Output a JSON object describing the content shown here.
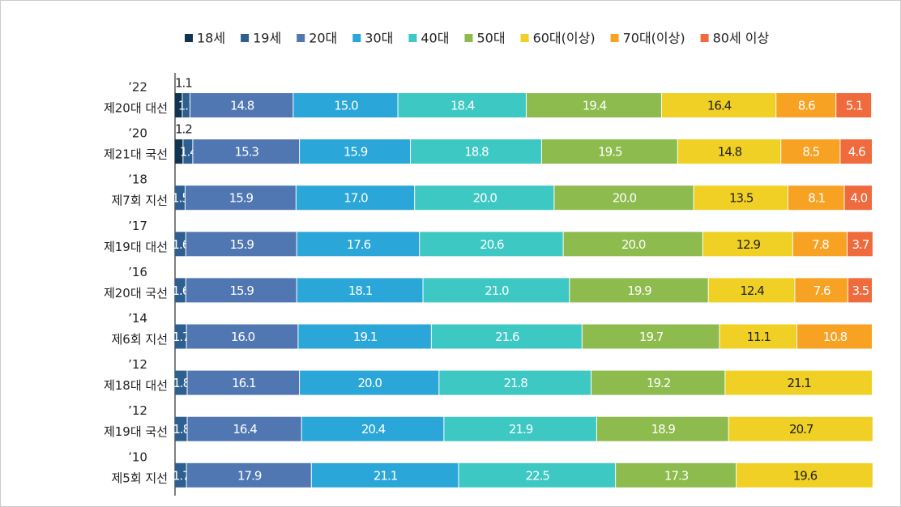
{
  "chart_data": {
    "type": "stacked-bar",
    "categories": [
      [
        "’22",
        "제20대 대선"
      ],
      [
        "’20",
        "제21대 국선"
      ],
      [
        "’18",
        "제7회 지선"
      ],
      [
        "’17",
        "제19대 대선"
      ],
      [
        "’16",
        "제20대 국선"
      ],
      [
        "’14",
        "제6회 지선"
      ],
      [
        "’12",
        "제18대 대선"
      ],
      [
        "’12",
        "제19대 국선"
      ],
      [
        "’10",
        "제5회 지선"
      ]
    ],
    "xlim": [
      0,
      100
    ],
    "series": [
      {
        "name": "18세",
        "color": "#0f3552",
        "values": [
          1.1,
          1.2,
          null,
          null,
          null,
          null,
          null,
          null,
          null
        ],
        "value_labels": [
          "1.1",
          "1.2",
          null,
          null,
          null,
          null,
          null,
          null,
          null
        ]
      },
      {
        "name": "19세",
        "color": "#2d5f90",
        "values": [
          1.1,
          1.4,
          1.5,
          1.6,
          1.6,
          1.7,
          1.8,
          1.8,
          1.7
        ],
        "value_labels": [
          "1.1",
          "1.4",
          "1.5",
          "1.6",
          "1.6",
          "1.7",
          "1.8",
          "1.8",
          "1.7"
        ]
      },
      {
        "name": "20대",
        "color": "#5077b2",
        "values": [
          14.8,
          15.3,
          15.9,
          15.9,
          15.9,
          16.0,
          16.1,
          16.4,
          17.9
        ],
        "value_labels": [
          "14.8",
          "15.3",
          "15.9",
          "15.9",
          "15.9",
          "16.0",
          "16.1",
          "16.4",
          "17.9"
        ]
      },
      {
        "name": "30대",
        "color": "#2ba6d8",
        "values": [
          15.0,
          15.9,
          17.0,
          17.6,
          18.1,
          19.1,
          20.0,
          20.4,
          21.1
        ],
        "value_labels": [
          "15.0",
          "15.9",
          "17.0",
          "17.6",
          "18.1",
          "19.1",
          "20.0",
          "20.4",
          "21.1"
        ]
      },
      {
        "name": "40대",
        "color": "#3ec8c3",
        "values": [
          18.4,
          18.8,
          20.0,
          20.6,
          21.0,
          21.6,
          21.8,
          21.9,
          22.5
        ],
        "value_labels": [
          "18.4",
          "18.8",
          "20.0",
          "20.6",
          "21.0",
          "21.6",
          "21.8",
          "21.9",
          "22.5"
        ]
      },
      {
        "name": "50대",
        "color": "#8dbb4d",
        "values": [
          19.4,
          19.5,
          20.0,
          20.0,
          19.9,
          19.7,
          19.2,
          18.9,
          17.3
        ],
        "value_labels": [
          "19.4",
          "19.5",
          "20.0",
          "20.0",
          "19.9",
          "19.7",
          "19.2",
          "18.9",
          "17.3"
        ]
      },
      {
        "name": "60대(이상)",
        "color": "#f0d024",
        "values": [
          16.4,
          14.8,
          13.5,
          12.9,
          12.4,
          11.1,
          21.1,
          20.7,
          19.6
        ],
        "value_labels": [
          "16.4",
          "14.8",
          "13.5",
          "12.9",
          "12.4",
          "11.1",
          "21.1",
          "20.7",
          "19.6"
        ]
      },
      {
        "name": "70대(이상)",
        "color": "#f8a224",
        "values": [
          8.6,
          8.5,
          8.1,
          7.8,
          7.6,
          10.8,
          null,
          null,
          null
        ],
        "value_labels": [
          "8.6",
          "8.5",
          "8.1",
          "7.8",
          "7.6",
          "10.8",
          null,
          null,
          null
        ]
      },
      {
        "name": "80세 이상",
        "color": "#ef6a3c",
        "values": [
          5.1,
          4.6,
          4.0,
          3.7,
          3.5,
          null,
          null,
          null,
          null
        ],
        "value_labels": [
          "5.1",
          "4.6",
          "4.0",
          "3.7",
          "3.5",
          null,
          null,
          null,
          null
        ]
      }
    ]
  }
}
